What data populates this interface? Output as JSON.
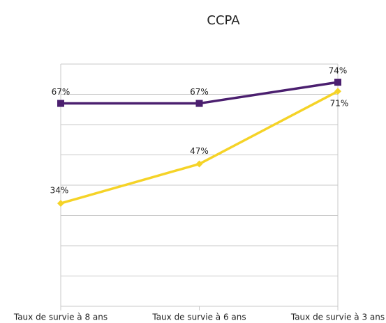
{
  "chart_data": {
    "type": "line",
    "title": "CCPA",
    "categories": [
      "Taux de survie à 8 ans",
      "Taux de survie à 6 ans",
      "Taux de survie à 3 ans"
    ],
    "series": [
      {
        "color": "#4b1f6f",
        "marker": "square",
        "values": [
          67,
          67,
          74
        ],
        "value_labels": [
          "67%",
          "67%",
          "74%"
        ]
      },
      {
        "color": "#f5d327",
        "marker": "diamond",
        "values": [
          34,
          47,
          71
        ],
        "value_labels": [
          "34%",
          "47%",
          "71%"
        ]
      }
    ],
    "ylim": [
      0,
      80
    ],
    "yticks": [
      0,
      10,
      20,
      30,
      40,
      50,
      60,
      70,
      80
    ],
    "grid": true
  }
}
